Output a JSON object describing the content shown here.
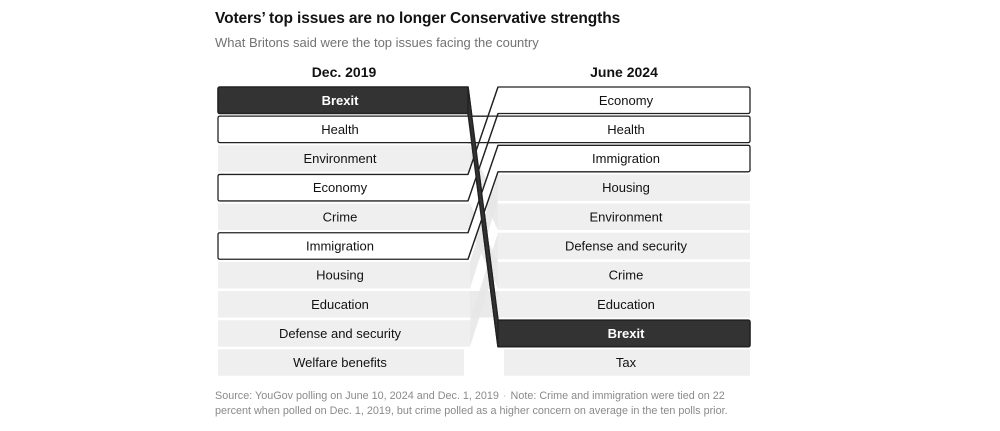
{
  "header": {
    "title": "Voters’ top issues are no longer Conservative strengths",
    "subtitle": "What Britons said were the top issues facing the country"
  },
  "colors": {
    "highlight_dark": "#333333",
    "outline": "#222222",
    "plain_fill": "#efefef",
    "outlined_fill": "#ffffff"
  },
  "chart_data": {
    "type": "table",
    "title": "Voters’ top issues are no longer Conservative strengths",
    "subtitle": "What Britons said were the top issues facing the country",
    "columns": [
      {
        "label": "Dec. 2019",
        "items": [
          {
            "label": "Brexit",
            "style": "dark"
          },
          {
            "label": "Health",
            "style": "outlined"
          },
          {
            "label": "Environment",
            "style": "plain"
          },
          {
            "label": "Economy",
            "style": "outlined"
          },
          {
            "label": "Crime",
            "style": "plain"
          },
          {
            "label": "Immigration",
            "style": "outlined"
          },
          {
            "label": "Housing",
            "style": "plain"
          },
          {
            "label": "Education",
            "style": "plain"
          },
          {
            "label": "Defense and security",
            "style": "plain"
          },
          {
            "label": "Welfare benefits",
            "style": "plain"
          }
        ]
      },
      {
        "label": "June 2024",
        "items": [
          {
            "label": "Economy",
            "style": "outlined"
          },
          {
            "label": "Health",
            "style": "outlined"
          },
          {
            "label": "Immigration",
            "style": "outlined"
          },
          {
            "label": "Housing",
            "style": "plain"
          },
          {
            "label": "Environment",
            "style": "plain"
          },
          {
            "label": "Defense and security",
            "style": "plain"
          },
          {
            "label": "Crime",
            "style": "plain"
          },
          {
            "label": "Education",
            "style": "plain"
          },
          {
            "label": "Brexit",
            "style": "dark"
          },
          {
            "label": "Tax",
            "style": "plain"
          }
        ]
      }
    ]
  },
  "footer": {
    "source": "Source: YouGov polling on June 10, 2024 and Dec. 1, 2019",
    "separator": "·",
    "note": "Note: Crime and immigration were tied on 22 percent when polled on Dec. 1, 2019, but crime polled as a higher concern on average in the ten polls prior."
  }
}
